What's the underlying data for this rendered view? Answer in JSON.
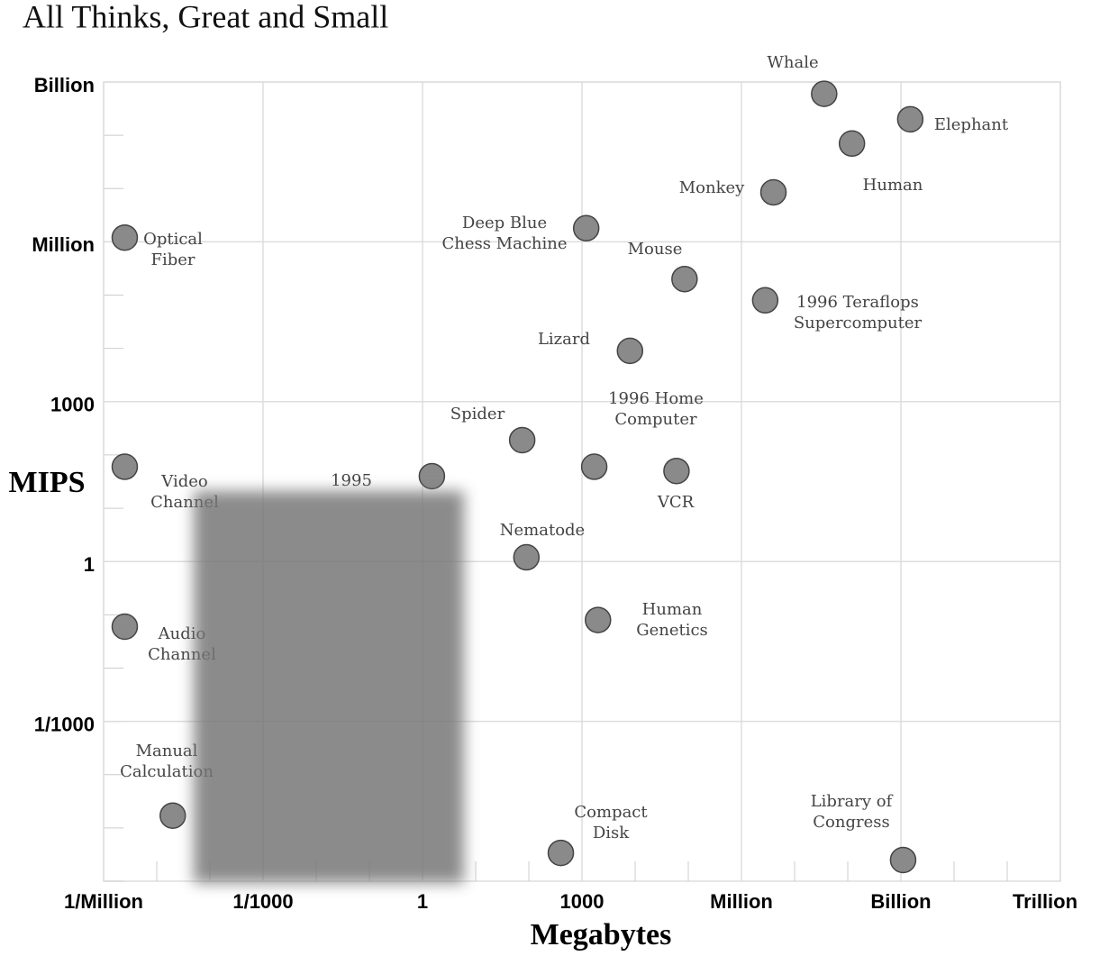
{
  "chart_data": {
    "type": "scatter",
    "title": "All Thinks, Great and Small",
    "x_label": "Megabytes",
    "y_label": "MIPS",
    "log_x": true,
    "log_y": true,
    "grid": true,
    "xlim": [
      1e-06,
      1000000000000
    ],
    "ylim": [
      1e-06,
      1000000000
    ],
    "xticks": [
      {
        "value": 1e-06,
        "label": "1/Million"
      },
      {
        "value": 0.001,
        "label": "1/1000"
      },
      1,
      1000,
      {
        "value": 1000000,
        "label": "Million"
      },
      {
        "value": 1000000000,
        "label": "Billion"
      },
      {
        "value": 1000000000000,
        "label": "Trillion"
      }
    ],
    "yticks": [
      {
        "value": 0.001,
        "label": "1/1000"
      },
      1,
      1000,
      {
        "value": 1000000,
        "label": "Million"
      },
      {
        "value": 1000000000,
        "label": "Billion"
      }
    ],
    "color": "#8a8a8a",
    "points": [
      {
        "label": [
          "Optical",
          "Fiber"
        ],
        "x": 2.5e-06,
        "y": 1200000
      },
      {
        "label": [
          "Video",
          "Channel"
        ],
        "x": 2.5e-06,
        "y": 60
      },
      {
        "label": [
          "Audio",
          "Channel"
        ],
        "x": 2.5e-06,
        "y": 0.06
      },
      {
        "label": [
          "Manual",
          "Calculation"
        ],
        "x": 2e-05,
        "y": 1.7e-05
      },
      {
        "label": [
          "1995"
        ],
        "x": 1.5,
        "y": 40
      },
      {
        "label": [
          "Deep Blue",
          "Chess Machine"
        ],
        "x": 1200,
        "y": 1800000
      },
      {
        "label": [
          "Mouse"
        ],
        "x": 85000,
        "y": 200000
      },
      {
        "label": [
          "Whale"
        ],
        "x": 36000000,
        "y": 600000000
      },
      {
        "label": [
          "Elephant"
        ],
        "x": 1500000000,
        "y": 200000000
      },
      {
        "label": [
          "Human"
        ],
        "x": 120000000,
        "y": 70000000
      },
      {
        "label": [
          "Monkey"
        ],
        "x": 4000000,
        "y": 8500000
      },
      {
        "label": [
          "1996 Teraflops",
          "Supercomputer"
        ],
        "x": 2800000,
        "y": 80000
      },
      {
        "label": [
          "Lizard"
        ],
        "x": 8000,
        "y": 9000
      },
      {
        "label": [
          "1996 Home",
          "Computer"
        ],
        "x": 1700,
        "y": 60
      },
      {
        "label": [
          "Spider"
        ],
        "x": 75,
        "y": 190
      },
      {
        "label": [
          "VCR"
        ],
        "x": 60000,
        "y": 50
      },
      {
        "label": [
          "Nematode"
        ],
        "x": 90,
        "y": 1.2
      },
      {
        "label": [
          "Human",
          "Genetics"
        ],
        "x": 2000,
        "y": 0.08
      },
      {
        "label": [
          "Compact",
          "Disk"
        ],
        "x": 400,
        "y": 3.4e-06
      },
      {
        "label": [
          "Library of",
          "Congress"
        ],
        "x": 1100000000,
        "y": 2.5e-06
      }
    ]
  }
}
